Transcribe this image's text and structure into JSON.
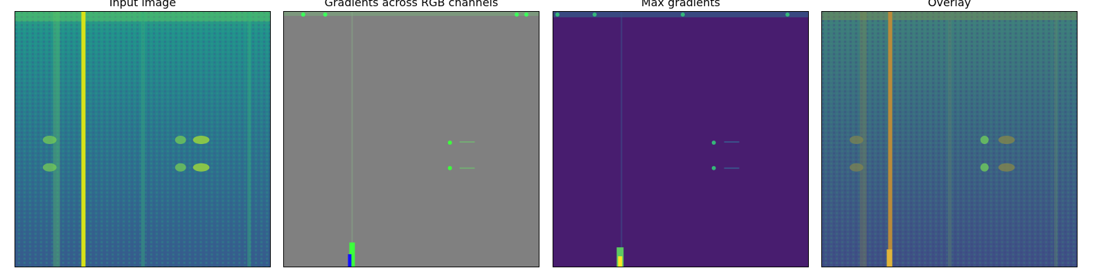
{
  "panels": [
    {
      "title": "Input image",
      "image": "spectrogram input, viridis colormap, bright vertical line and two faint blob pairs"
    },
    {
      "title": "Gradients across RGB channels",
      "image": "mostly gray gradient map with small green/blue activations"
    },
    {
      "title": "Max gradients",
      "image": "dark purple saliency map with bright yellow/green activations"
    },
    {
      "title": "Overlay",
      "image": "input image blended with gradient heat overlay"
    }
  ],
  "colors": {
    "viridis_dark": "#440154",
    "viridis_purple": "#481d6f",
    "viridis_blue": "#31688e",
    "viridis_teal": "#21918c",
    "viridis_green": "#35b779",
    "viridis_yellow": "#fde725",
    "gradient_gray": "#808080"
  }
}
